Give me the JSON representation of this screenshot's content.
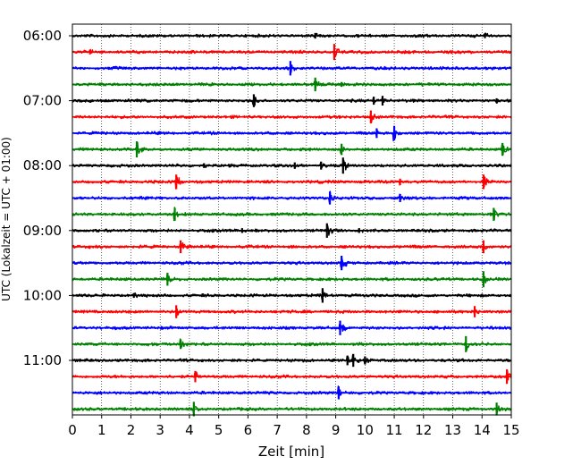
{
  "chart_data": {
    "type": "line",
    "subtype": "helicorder",
    "xlabel": "Zeit  [min]",
    "ylabel": "UTC (Lokalzeit = UTC + 01:00)",
    "xlim": [
      0,
      15
    ],
    "x_ticks": [
      "0",
      "1",
      "2",
      "3",
      "4",
      "5",
      "6",
      "7",
      "8",
      "9",
      "10",
      "11",
      "12",
      "13",
      "14",
      "15"
    ],
    "y_tick_labels": [
      "06:00",
      "07:00",
      "08:00",
      "09:00",
      "10:00",
      "11:00"
    ],
    "vertical_grid": true,
    "trace_interval_minutes": 15,
    "trace_colors": [
      "#000000",
      "#ff0000",
      "#0000ff",
      "#008000"
    ],
    "traces": [
      {
        "start": "06:00",
        "color": "#000000",
        "events": [
          [
            8.3,
            0.35
          ],
          [
            14.1,
            0.3
          ]
        ]
      },
      {
        "start": "06:15",
        "color": "#ff0000",
        "events": [
          [
            0.6,
            0.3
          ],
          [
            8.95,
            1.0
          ]
        ]
      },
      {
        "start": "06:30",
        "color": "#0000ff",
        "events": [
          [
            7.45,
            0.9
          ]
        ]
      },
      {
        "start": "06:45",
        "color": "#008000",
        "events": [
          [
            8.3,
            0.85
          ],
          [
            9.2,
            0.3
          ]
        ]
      },
      {
        "start": "07:00",
        "color": "#000000",
        "events": [
          [
            6.2,
            0.8
          ],
          [
            10.3,
            0.5
          ],
          [
            10.6,
            0.6
          ],
          [
            14.5,
            0.3
          ]
        ]
      },
      {
        "start": "07:15",
        "color": "#ff0000",
        "events": [
          [
            10.2,
            0.8
          ]
        ]
      },
      {
        "start": "07:30",
        "color": "#0000ff",
        "events": [
          [
            10.4,
            0.6
          ],
          [
            11.0,
            0.9
          ]
        ]
      },
      {
        "start": "07:45",
        "color": "#008000",
        "events": [
          [
            2.2,
            1.0
          ],
          [
            9.2,
            0.7
          ],
          [
            14.7,
            0.8
          ]
        ]
      },
      {
        "start": "08:00",
        "color": "#000000",
        "events": [
          [
            4.5,
            0.3
          ],
          [
            7.6,
            0.4
          ],
          [
            8.5,
            0.5
          ],
          [
            9.25,
            1.0
          ]
        ]
      },
      {
        "start": "08:15",
        "color": "#ff0000",
        "events": [
          [
            3.55,
            0.9
          ],
          [
            11.2,
            0.4
          ],
          [
            14.05,
            0.9
          ]
        ]
      },
      {
        "start": "08:30",
        "color": "#0000ff",
        "events": [
          [
            8.8,
            0.8
          ],
          [
            11.2,
            0.5
          ]
        ]
      },
      {
        "start": "08:45",
        "color": "#008000",
        "events": [
          [
            3.5,
            0.8
          ],
          [
            14.4,
            0.8
          ]
        ]
      },
      {
        "start": "09:00",
        "color": "#000000",
        "events": [
          [
            5.8,
            0.3
          ],
          [
            8.7,
            0.9
          ],
          [
            9.8,
            0.3
          ]
        ]
      },
      {
        "start": "09:15",
        "color": "#ff0000",
        "events": [
          [
            3.7,
            0.8
          ],
          [
            14.05,
            0.8
          ]
        ]
      },
      {
        "start": "09:30",
        "color": "#0000ff",
        "events": [
          [
            9.2,
            0.9
          ]
        ]
      },
      {
        "start": "09:45",
        "color": "#008000",
        "events": [
          [
            3.25,
            0.8
          ],
          [
            14.05,
            1.0
          ]
        ]
      },
      {
        "start": "10:00",
        "color": "#000000",
        "events": [
          [
            2.1,
            0.3
          ],
          [
            8.55,
            0.9
          ]
        ]
      },
      {
        "start": "10:15",
        "color": "#ff0000",
        "events": [
          [
            3.55,
            0.8
          ],
          [
            13.75,
            0.7
          ]
        ]
      },
      {
        "start": "10:30",
        "color": "#0000ff",
        "events": [
          [
            9.15,
            0.9
          ]
        ]
      },
      {
        "start": "10:45",
        "color": "#008000",
        "events": [
          [
            3.7,
            0.6
          ],
          [
            13.45,
            1.0
          ]
        ]
      },
      {
        "start": "11:00",
        "color": "#000000",
        "events": [
          [
            9.4,
            0.6
          ],
          [
            9.6,
            0.8
          ],
          [
            10.0,
            0.5
          ]
        ]
      },
      {
        "start": "11:15",
        "color": "#ff0000",
        "events": [
          [
            4.2,
            0.7
          ],
          [
            14.85,
            0.9
          ]
        ]
      },
      {
        "start": "11:30",
        "color": "#0000ff",
        "events": [
          [
            9.1,
            0.8
          ]
        ]
      },
      {
        "start": "11:45",
        "color": "#008000",
        "events": [
          [
            4.15,
            0.9
          ],
          [
            14.5,
            0.8
          ]
        ]
      }
    ]
  }
}
